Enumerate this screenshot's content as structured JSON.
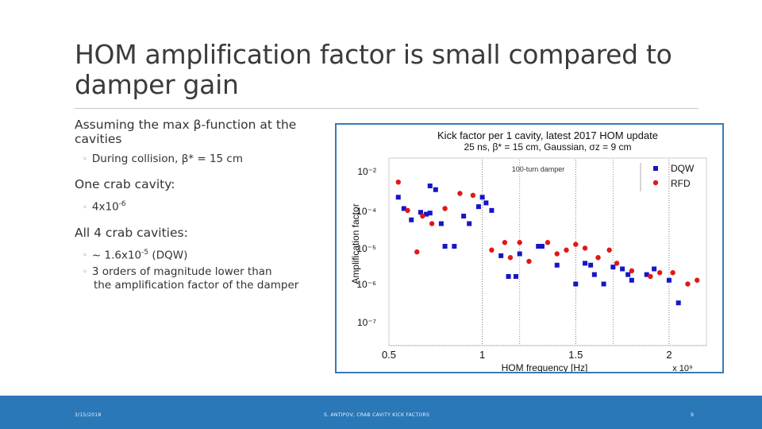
{
  "slide": {
    "title": "HOM amplification factor is small compared to damper gain"
  },
  "content": {
    "item1": "Assuming the max β-function at the cavities",
    "item1_sub": "During collision, β* = 15 cm",
    "item2": "One crab cavity:",
    "item2_sub_base": "4x10",
    "item2_sub_exp": "-6",
    "item3": "All 4 crab cavities:",
    "item3_sub1_pre": "~ 1.6x10",
    "item3_sub1_exp": "-5",
    "item3_sub1_post": " (DQW)",
    "item3_sub2_line1": "3 orders of magnitude lower than",
    "item3_sub2_line2": "the amplification factor of the damper"
  },
  "footer": {
    "date": "3/15/2018",
    "author": "S. ANTIPOV, CRAB CAVITY KICK FACTORS",
    "page": "9"
  },
  "colors": {
    "accent": "#2b78b8",
    "dqw": "#1515c8",
    "rfd": "#e01818"
  },
  "chart_data": {
    "type": "scatter",
    "title": "Kick factor per 1 cavity, latest 2017 HOM update",
    "subtitle": "25 ns, β* = 15 cm, Gaussian, σz = 9 cm",
    "xlabel": "HOM frequency [Hz]",
    "x_multiplier": "x 10⁹",
    "ylabel": "Amplification factor",
    "xlim": [
      0.5,
      2.2
    ],
    "yticks": [
      "10⁻²",
      "10⁻⁴",
      "10⁻⁵",
      "10⁻⁶",
      "10⁻⁷"
    ],
    "xticks": [
      "0.5",
      "1",
      "1.5",
      "2"
    ],
    "annotation": "100-turn damper",
    "series": [
      {
        "name": "DQW",
        "marker": "square",
        "points": [
          [
            0.55,
            5.3
          ],
          [
            0.58,
            5.0
          ],
          [
            0.62,
            4.7
          ],
          [
            0.67,
            4.9
          ],
          [
            0.7,
            4.85
          ],
          [
            0.72,
            4.88
          ],
          [
            0.72,
            5.6
          ],
          [
            0.75,
            5.5
          ],
          [
            0.78,
            4.6
          ],
          [
            0.8,
            4.0
          ],
          [
            0.85,
            4.0
          ],
          [
            0.9,
            4.8
          ],
          [
            0.93,
            4.6
          ],
          [
            0.98,
            5.05
          ],
          [
            1.0,
            5.3
          ],
          [
            1.02,
            5.15
          ],
          [
            1.05,
            4.95
          ],
          [
            1.1,
            3.75
          ],
          [
            1.14,
            3.2
          ],
          [
            1.18,
            3.2
          ],
          [
            1.2,
            3.8
          ],
          [
            1.3,
            4.0
          ],
          [
            1.32,
            4.0
          ],
          [
            1.4,
            3.5
          ],
          [
            1.5,
            3.0
          ],
          [
            1.55,
            3.55
          ],
          [
            1.58,
            3.5
          ],
          [
            1.6,
            3.25
          ],
          [
            1.65,
            3.0
          ],
          [
            1.7,
            3.45
          ],
          [
            1.75,
            3.4
          ],
          [
            1.78,
            3.25
          ],
          [
            1.8,
            3.1
          ],
          [
            1.88,
            3.25
          ],
          [
            1.92,
            3.4
          ],
          [
            2.0,
            3.1
          ],
          [
            2.05,
            2.5
          ]
        ]
      },
      {
        "name": "RFD",
        "marker": "circle",
        "points": [
          [
            0.55,
            5.7
          ],
          [
            0.6,
            4.95
          ],
          [
            0.65,
            3.85
          ],
          [
            0.68,
            4.8
          ],
          [
            0.73,
            4.6
          ],
          [
            0.8,
            5.0
          ],
          [
            0.88,
            5.4
          ],
          [
            0.95,
            5.35
          ],
          [
            1.05,
            3.9
          ],
          [
            1.12,
            4.1
          ],
          [
            1.15,
            3.7
          ],
          [
            1.2,
            4.1
          ],
          [
            1.25,
            3.6
          ],
          [
            1.35,
            4.1
          ],
          [
            1.4,
            3.8
          ],
          [
            1.45,
            3.9
          ],
          [
            1.5,
            4.05
          ],
          [
            1.55,
            3.95
          ],
          [
            1.62,
            3.7
          ],
          [
            1.68,
            3.9
          ],
          [
            1.72,
            3.55
          ],
          [
            1.8,
            3.35
          ],
          [
            1.9,
            3.2
          ],
          [
            1.95,
            3.3
          ],
          [
            2.02,
            3.3
          ],
          [
            2.1,
            3.0
          ],
          [
            2.15,
            3.1
          ]
        ]
      }
    ]
  }
}
